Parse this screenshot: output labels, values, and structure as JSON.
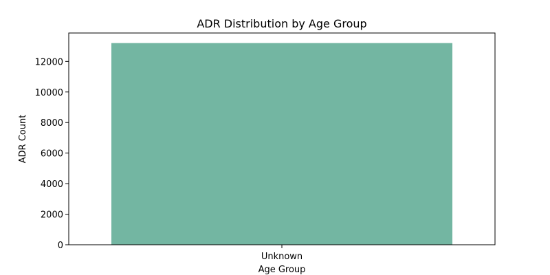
{
  "chart_data": {
    "type": "bar",
    "title": "ADR Distribution by Age Group",
    "xlabel": "Age Group",
    "ylabel": "ADR Count",
    "categories": [
      "Unknown"
    ],
    "values": [
      13200
    ],
    "ylim": [
      0,
      13860
    ],
    "yticks": [
      0,
      2000,
      4000,
      6000,
      8000,
      10000,
      12000
    ],
    "grid": false,
    "legend": "none",
    "bar_color": "#73b6a2",
    "axis_color": "#000000"
  }
}
